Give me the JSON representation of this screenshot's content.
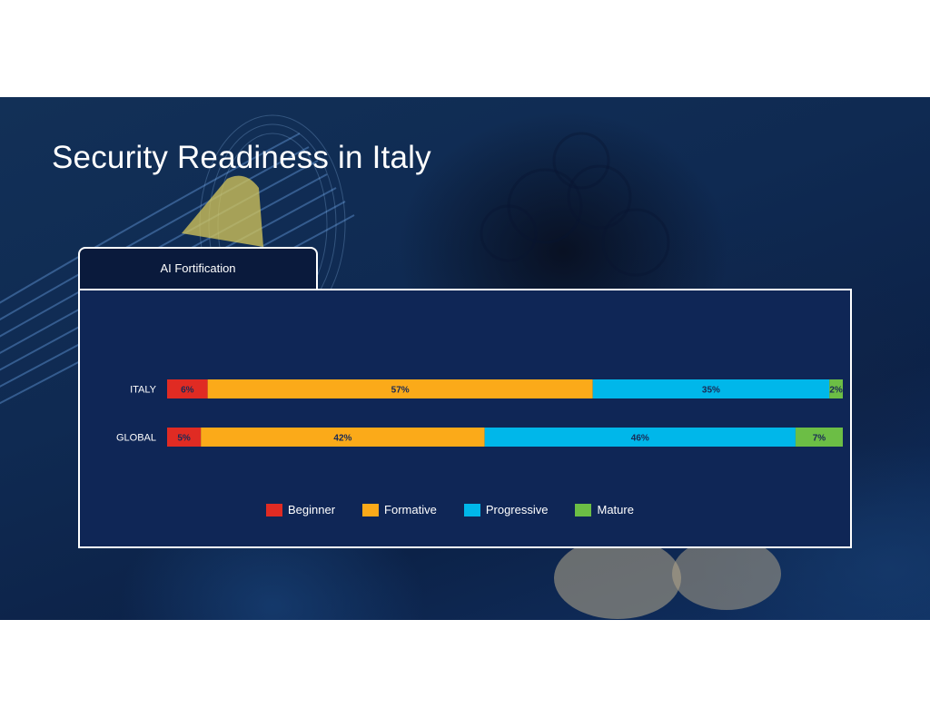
{
  "slide": {
    "title": "Security Readiness in Italy"
  },
  "tab": {
    "label": "AI Fortification"
  },
  "chart_data": {
    "type": "bar",
    "orientation": "horizontal",
    "stacked": true,
    "categories": [
      "ITALY",
      "GLOBAL"
    ],
    "series": [
      {
        "name": "Beginner",
        "values": [
          6,
          5
        ],
        "color": "#e02b23",
        "label_color": "#1a2a55"
      },
      {
        "name": "Formative",
        "values": [
          57,
          42
        ],
        "color": "#fbaa19",
        "label_color": "#1a2a55"
      },
      {
        "name": "Progressive",
        "values": [
          35,
          46
        ],
        "color": "#00b7ea",
        "label_color": "#1a2a55"
      },
      {
        "name": "Mature",
        "values": [
          2,
          7
        ],
        "color": "#6cbe45",
        "label_color": "#1a2a55"
      }
    ],
    "value_suffix": "%",
    "xlim": [
      0,
      100
    ],
    "legend_position": "bottom",
    "grid": false
  }
}
